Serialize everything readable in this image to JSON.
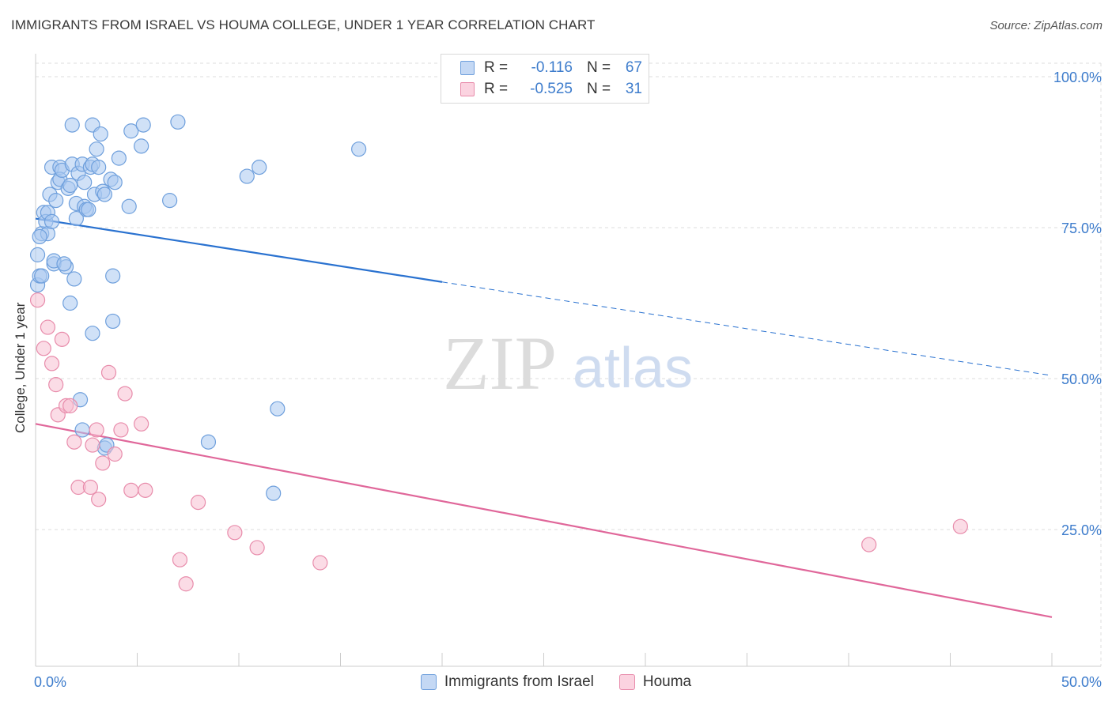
{
  "header": {
    "title": "IMMIGRANTS FROM ISRAEL VS HOUMA COLLEGE, UNDER 1 YEAR CORRELATION CHART",
    "source": "Source: ZipAtlas.com"
  },
  "watermark": {
    "zip": "ZIP",
    "atlas": "atlas"
  },
  "stats": [
    {
      "r_label": "R =",
      "r_value": "-0.116",
      "n_label": "N =",
      "n_value": "67"
    },
    {
      "r_label": "R =",
      "r_value": "-0.525",
      "n_label": "N =",
      "n_value": "31"
    }
  ],
  "colors": {
    "israel_fill": "#aac8f0",
    "israel_stroke": "#6e9fdc",
    "israel_line": "#2a72d0",
    "houma_fill": "#f8c0d2",
    "houma_stroke": "#e88cab",
    "houma_line": "#e0679a",
    "grid": "#dddddd",
    "tick_text": "#3d7ccc"
  },
  "chart_data": {
    "type": "scatter",
    "ylabel": "College, Under 1 year",
    "xlim": [
      0,
      50
    ],
    "ylim": [
      0,
      105
    ],
    "x_tick_labels": [
      "0.0%",
      "50.0%"
    ],
    "y_ticks": [
      {
        "value": 100,
        "label": "100.0%"
      },
      {
        "value": 75,
        "label": "75.0%"
      },
      {
        "value": 50,
        "label": "50.0%"
      },
      {
        "value": 25,
        "label": "25.0%"
      }
    ],
    "legend": [
      "Immigrants from Israel",
      "Houma"
    ],
    "series": [
      {
        "name": "Immigrants from Israel",
        "points": [
          [
            0.1,
            70.5
          ],
          [
            0.1,
            65.5
          ],
          [
            0.2,
            67.0
          ],
          [
            0.3,
            74.0
          ],
          [
            0.4,
            77.5
          ],
          [
            0.5,
            76.0
          ],
          [
            0.6,
            74.0
          ],
          [
            0.6,
            77.5
          ],
          [
            0.7,
            80.5
          ],
          [
            0.8,
            85.0
          ],
          [
            0.8,
            76.0
          ],
          [
            0.9,
            69.0
          ],
          [
            0.9,
            69.5
          ],
          [
            1.0,
            79.5
          ],
          [
            1.1,
            82.5
          ],
          [
            1.2,
            85.0
          ],
          [
            1.2,
            83.0
          ],
          [
            1.3,
            84.5
          ],
          [
            1.5,
            68.5
          ],
          [
            1.6,
            81.5
          ],
          [
            1.7,
            62.5
          ],
          [
            1.7,
            82.0
          ],
          [
            1.8,
            92.0
          ],
          [
            1.8,
            85.5
          ],
          [
            1.9,
            66.5
          ],
          [
            2.0,
            79.0
          ],
          [
            2.0,
            76.5
          ],
          [
            2.1,
            84.0
          ],
          [
            2.2,
            46.5
          ],
          [
            2.3,
            85.5
          ],
          [
            2.3,
            41.5
          ],
          [
            2.4,
            78.5
          ],
          [
            2.4,
            82.5
          ],
          [
            2.5,
            78.0
          ],
          [
            2.6,
            78.0
          ],
          [
            2.7,
            85.0
          ],
          [
            2.8,
            92.0
          ],
          [
            2.8,
            85.5
          ],
          [
            2.8,
            57.5
          ],
          [
            2.9,
            80.5
          ],
          [
            3.0,
            88.0
          ],
          [
            3.1,
            85.0
          ],
          [
            3.2,
            90.5
          ],
          [
            3.3,
            81.0
          ],
          [
            3.4,
            80.5
          ],
          [
            3.4,
            38.5
          ],
          [
            3.5,
            39.0
          ],
          [
            3.7,
            83.0
          ],
          [
            3.8,
            67.0
          ],
          [
            3.8,
            59.5
          ],
          [
            3.9,
            82.5
          ],
          [
            4.1,
            86.5
          ],
          [
            4.6,
            78.5
          ],
          [
            4.7,
            91.0
          ],
          [
            5.2,
            88.5
          ],
          [
            5.3,
            92.0
          ],
          [
            6.6,
            79.5
          ],
          [
            7.0,
            92.5
          ],
          [
            8.5,
            39.5
          ],
          [
            10.4,
            83.5
          ],
          [
            11.0,
            85.0
          ],
          [
            11.7,
            31.0
          ],
          [
            11.9,
            45.0
          ],
          [
            15.9,
            88.0
          ],
          [
            0.2,
            73.5
          ],
          [
            0.3,
            67.0
          ],
          [
            1.4,
            69.0
          ]
        ]
      },
      {
        "name": "Houma",
        "points": [
          [
            0.1,
            63.0
          ],
          [
            0.4,
            55.0
          ],
          [
            0.6,
            58.5
          ],
          [
            0.8,
            52.5
          ],
          [
            1.0,
            49.0
          ],
          [
            1.1,
            44.0
          ],
          [
            1.3,
            56.5
          ],
          [
            1.5,
            45.5
          ],
          [
            1.7,
            45.5
          ],
          [
            1.9,
            39.5
          ],
          [
            2.1,
            32.0
          ],
          [
            2.7,
            32.0
          ],
          [
            2.8,
            39.0
          ],
          [
            3.0,
            41.5
          ],
          [
            3.1,
            30.0
          ],
          [
            3.3,
            36.0
          ],
          [
            3.6,
            51.0
          ],
          [
            3.9,
            37.5
          ],
          [
            4.2,
            41.5
          ],
          [
            4.4,
            47.5
          ],
          [
            4.7,
            31.5
          ],
          [
            5.2,
            42.5
          ],
          [
            5.4,
            31.5
          ],
          [
            7.1,
            20.0
          ],
          [
            7.4,
            16.0
          ],
          [
            8.0,
            29.5
          ],
          [
            9.8,
            24.5
          ],
          [
            10.9,
            22.0
          ],
          [
            14.0,
            19.5
          ],
          [
            41.0,
            22.5
          ],
          [
            45.5,
            25.5
          ]
        ]
      }
    ],
    "trendlines": [
      {
        "series": "Immigrants from Israel",
        "x0": 0,
        "y0": 76.5,
        "x1": 20,
        "y1": 66.0,
        "dashed_to_x": 50,
        "dashed_to_y": 50.5
      },
      {
        "series": "Houma",
        "x0": 0,
        "y0": 42.5,
        "x1": 50,
        "y1": 10.5
      }
    ]
  }
}
